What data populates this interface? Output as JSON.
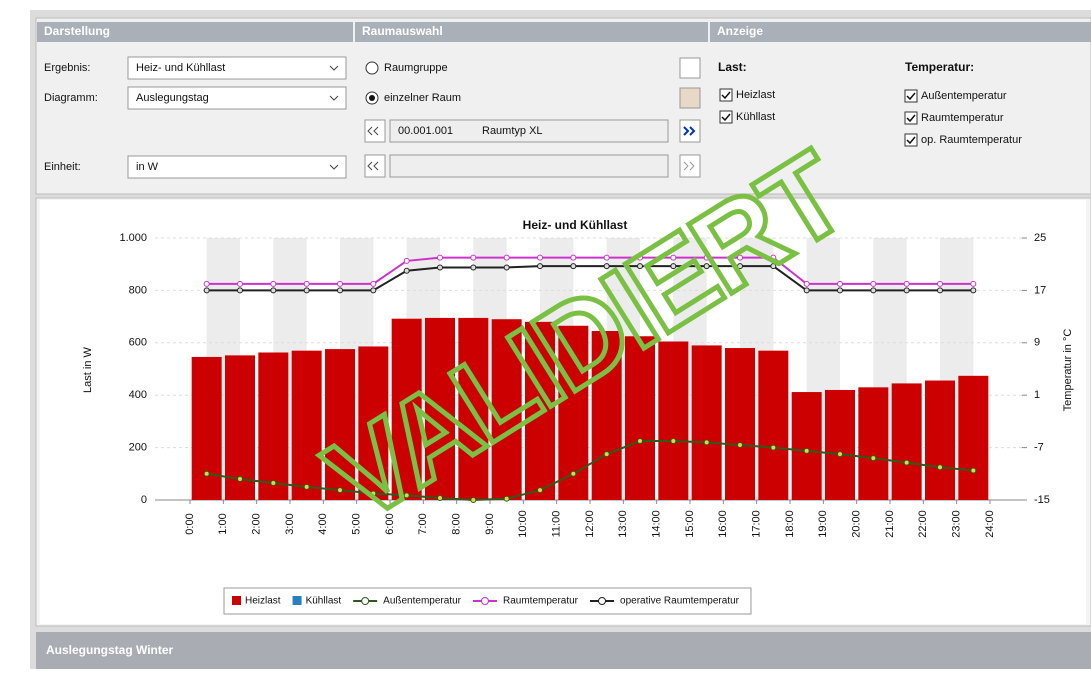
{
  "panel": {
    "sections": [
      "Darstellung",
      "Raumauswahl",
      "Anzeige"
    ],
    "ergebnis_label": "Ergebnis:",
    "ergebnis_value": "Heiz- und Kühllast",
    "diagramm_label": "Diagramm:",
    "diagramm_value": "Auslegungstag",
    "einheit_label": "Einheit:",
    "einheit_value": "in W",
    "radio": [
      "Raumgruppe",
      "einzelner Raum"
    ],
    "room_number": "00.001.001",
    "room_type": "Raumtyp XL",
    "last_label": "Last:",
    "last_options": [
      "Heizlast",
      "Kühllast"
    ],
    "temp_label": "Temperatur:",
    "temp_options": [
      "Außentemperatur",
      "Raumtemperatur",
      "op. Raumtemperatur"
    ]
  },
  "footer": "Auslegungstag Winter",
  "watermark": "VALIDIERT",
  "chart_data": {
    "type": "bar",
    "title": "Heiz- und Kühllast",
    "ylabel": "Last in W",
    "y2label": "Temperatur in °C",
    "xticks": [
      "0:00",
      "1:00",
      "2:00",
      "3:00",
      "4:00",
      "5:00",
      "6:00",
      "7:00",
      "8:00",
      "9:00",
      "10:00",
      "11:00",
      "12:00",
      "13:00",
      "14:00",
      "15:00",
      "16:00",
      "17:00",
      "18:00",
      "19:00",
      "20:00",
      "21:00",
      "22:00",
      "23:00",
      "24:00"
    ],
    "ylim": [
      0,
      1000
    ],
    "yticks": [
      0,
      200,
      400,
      600,
      800,
      {
        "value": 1000,
        "label": "1.000"
      }
    ],
    "y2lim": [
      -15,
      25
    ],
    "y2ticks": [
      -15,
      -7,
      1,
      9,
      17,
      25
    ],
    "series": [
      {
        "name": "Heizlast",
        "type": "bar",
        "color": "#cc0000",
        "values": [
          546,
          552,
          563,
          570,
          576,
          586,
          692,
          695,
          695,
          690,
          680,
          665,
          645,
          625,
          605,
          590,
          580,
          570,
          412,
          420,
          430,
          445,
          456,
          474
        ]
      },
      {
        "name": "Kühllast",
        "type": "bar",
        "color": "#2a7fc0",
        "values": [
          0,
          0,
          0,
          0,
          0,
          0,
          0,
          0,
          0,
          0,
          0,
          0,
          0,
          0,
          0,
          0,
          0,
          0,
          0,
          0,
          0,
          0,
          0,
          0
        ]
      },
      {
        "name": "Außentemperatur",
        "type": "line",
        "axis": "y2",
        "color": "#2e5a1e",
        "marker": "#d9d94a",
        "values": [
          -11,
          -11.8,
          -12.4,
          -13,
          -13.5,
          -14,
          -14.3,
          -14.7,
          -15,
          -14.8,
          -13.5,
          -11,
          -8,
          -6,
          -6,
          -6.2,
          -6.6,
          -7,
          -7.5,
          -8,
          -8.6,
          -9.3,
          -10,
          -10.5
        ]
      },
      {
        "name": "Raumtemperatur",
        "type": "line",
        "axis": "y2",
        "color": "#cc33cc",
        "marker": "#ffffff",
        "values": [
          18,
          18,
          18,
          18,
          18,
          18,
          21.5,
          22,
          22,
          22,
          22,
          22,
          22,
          22,
          22,
          22,
          22,
          22,
          18,
          18,
          18,
          18,
          18,
          18
        ]
      },
      {
        "name": "operative Raumtemperatur",
        "type": "line",
        "axis": "y2",
        "color": "#222222",
        "marker": "#dddddd",
        "values": [
          17,
          17,
          17,
          17,
          17,
          17,
          20,
          20.5,
          20.5,
          20.5,
          20.7,
          20.7,
          20.7,
          20.7,
          20.7,
          20.7,
          20.7,
          20.7,
          17,
          17,
          17,
          17,
          17,
          17
        ]
      }
    ]
  }
}
